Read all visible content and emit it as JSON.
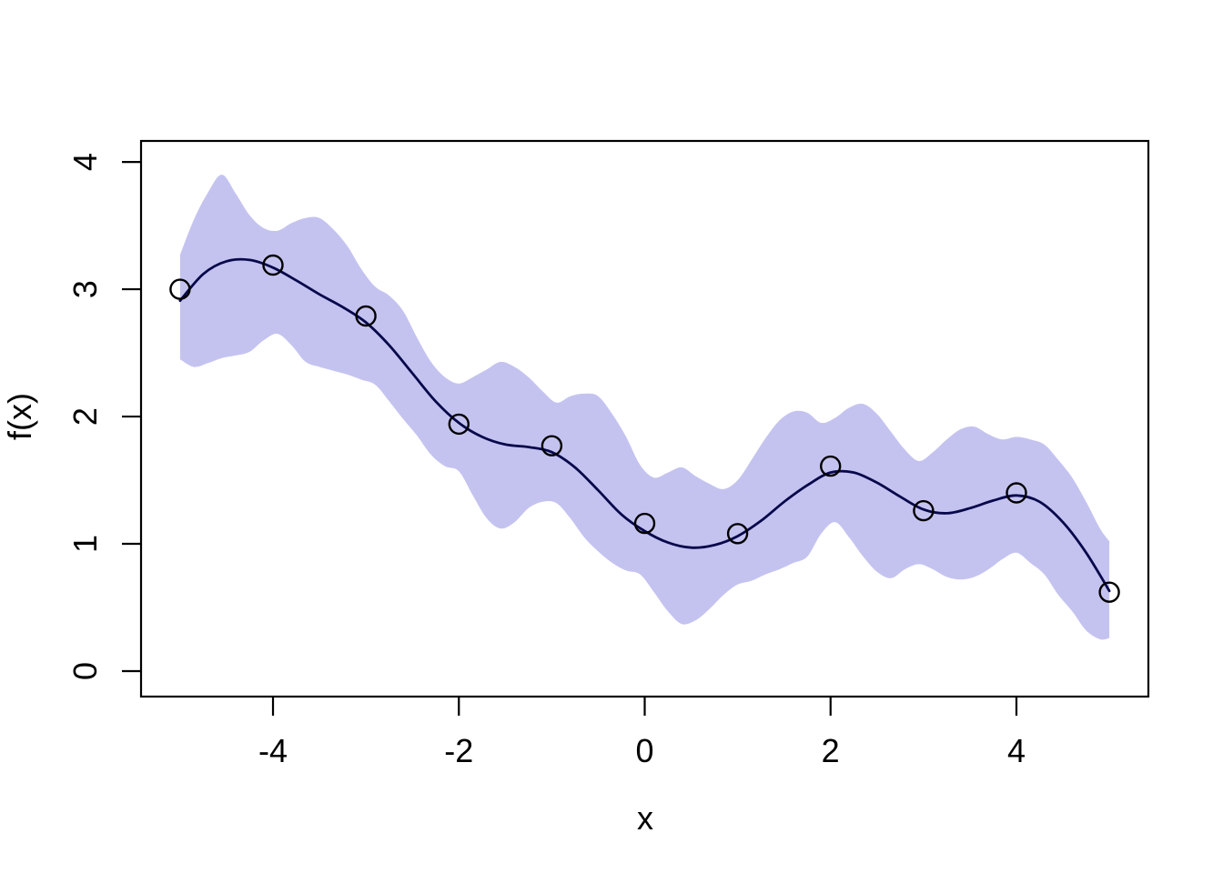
{
  "figure": {
    "kind": "R-base-graphics scatterplot with fitted curve and credible band",
    "background": "#ffffff"
  },
  "chart_data": {
    "type": "line",
    "title": "",
    "xlabel": "x",
    "ylabel": "f(x)",
    "xlim": [
      -5.42,
      5.42
    ],
    "ylim": [
      -0.2,
      4.165
    ],
    "x_ticks": [
      -4,
      -2,
      0,
      2,
      4
    ],
    "y_ticks": [
      0,
      1,
      2,
      3,
      4
    ],
    "grid": false,
    "legend": null,
    "colors": {
      "band": "#c4c3f0",
      "mean_line": "#08084b",
      "points": "#000000",
      "axis": "#000000"
    },
    "series": [
      {
        "name": "credible-band",
        "type": "area",
        "color": "#c4c3f0",
        "x": [
          -5.0,
          -4.85,
          -4.7,
          -4.55,
          -4.4,
          -4.25,
          -4.1,
          -3.95,
          -3.8,
          -3.65,
          -3.5,
          -3.35,
          -3.2,
          -3.05,
          -2.9,
          -2.75,
          -2.6,
          -2.45,
          -2.3,
          -2.15,
          -2.0,
          -1.85,
          -1.7,
          -1.55,
          -1.4,
          -1.25,
          -1.1,
          -0.95,
          -0.8,
          -0.65,
          -0.5,
          -0.35,
          -0.2,
          -0.05,
          0.1,
          0.25,
          0.4,
          0.55,
          0.7,
          0.85,
          1.0,
          1.15,
          1.3,
          1.45,
          1.6,
          1.75,
          1.9,
          2.05,
          2.2,
          2.35,
          2.5,
          2.65,
          2.8,
          2.95,
          3.1,
          3.25,
          3.4,
          3.55,
          3.7,
          3.85,
          4.0,
          4.15,
          4.3,
          4.45,
          4.6,
          4.75,
          4.9,
          5.0
        ],
        "upper": [
          3.27,
          3.55,
          3.76,
          3.9,
          3.75,
          3.58,
          3.48,
          3.46,
          3.52,
          3.56,
          3.56,
          3.47,
          3.34,
          3.16,
          3.02,
          2.95,
          2.83,
          2.62,
          2.43,
          2.31,
          2.26,
          2.31,
          2.37,
          2.43,
          2.39,
          2.31,
          2.2,
          2.11,
          2.16,
          2.18,
          2.16,
          2.02,
          1.84,
          1.62,
          1.52,
          1.56,
          1.6,
          1.53,
          1.47,
          1.43,
          1.5,
          1.66,
          1.83,
          1.97,
          2.04,
          2.03,
          1.95,
          1.99,
          2.07,
          2.1,
          2.02,
          1.88,
          1.74,
          1.65,
          1.72,
          1.82,
          1.9,
          1.92,
          1.86,
          1.82,
          1.84,
          1.82,
          1.78,
          1.66,
          1.52,
          1.33,
          1.12,
          1.02
        ],
        "lower": [
          2.45,
          2.39,
          2.42,
          2.46,
          2.48,
          2.51,
          2.6,
          2.65,
          2.56,
          2.43,
          2.39,
          2.36,
          2.33,
          2.29,
          2.25,
          2.12,
          1.98,
          1.85,
          1.7,
          1.61,
          1.57,
          1.38,
          1.2,
          1.12,
          1.17,
          1.28,
          1.33,
          1.32,
          1.2,
          1.05,
          0.94,
          0.85,
          0.79,
          0.76,
          0.62,
          0.47,
          0.37,
          0.4,
          0.49,
          0.6,
          0.68,
          0.71,
          0.76,
          0.8,
          0.85,
          0.9,
          1.08,
          1.17,
          1.05,
          0.9,
          0.78,
          0.73,
          0.8,
          0.84,
          0.8,
          0.74,
          0.72,
          0.74,
          0.8,
          0.88,
          0.93,
          0.85,
          0.76,
          0.6,
          0.47,
          0.32,
          0.25,
          0.26
        ]
      },
      {
        "name": "posterior-mean",
        "type": "line",
        "color": "#08084b",
        "x": [
          -5.0,
          -4.75,
          -4.5,
          -4.25,
          -4.0,
          -3.75,
          -3.5,
          -3.25,
          -3.0,
          -2.75,
          -2.5,
          -2.25,
          -2.0,
          -1.75,
          -1.5,
          -1.25,
          -1.0,
          -0.75,
          -0.5,
          -0.25,
          0.0,
          0.25,
          0.5,
          0.75,
          1.0,
          1.25,
          1.5,
          1.75,
          2.0,
          2.25,
          2.5,
          2.75,
          3.0,
          3.25,
          3.5,
          3.75,
          4.0,
          4.25,
          4.5,
          4.75,
          5.0
        ],
        "y": [
          2.91,
          3.12,
          3.22,
          3.23,
          3.17,
          3.07,
          2.96,
          2.86,
          2.74,
          2.56,
          2.34,
          2.12,
          1.95,
          1.84,
          1.78,
          1.76,
          1.72,
          1.6,
          1.42,
          1.23,
          1.1,
          1.01,
          0.97,
          0.99,
          1.06,
          1.18,
          1.33,
          1.46,
          1.56,
          1.56,
          1.48,
          1.37,
          1.27,
          1.24,
          1.28,
          1.34,
          1.38,
          1.33,
          1.17,
          0.93,
          0.63
        ]
      },
      {
        "name": "observations",
        "type": "scatter",
        "marker": "open-circle",
        "color": "#000000",
        "x": [
          -5,
          -4,
          -3,
          -2,
          -1,
          0,
          1,
          2,
          3,
          4,
          5
        ],
        "y": [
          3.0,
          3.19,
          2.79,
          1.94,
          1.77,
          1.16,
          1.08,
          1.61,
          1.26,
          1.4,
          0.62
        ]
      }
    ]
  }
}
